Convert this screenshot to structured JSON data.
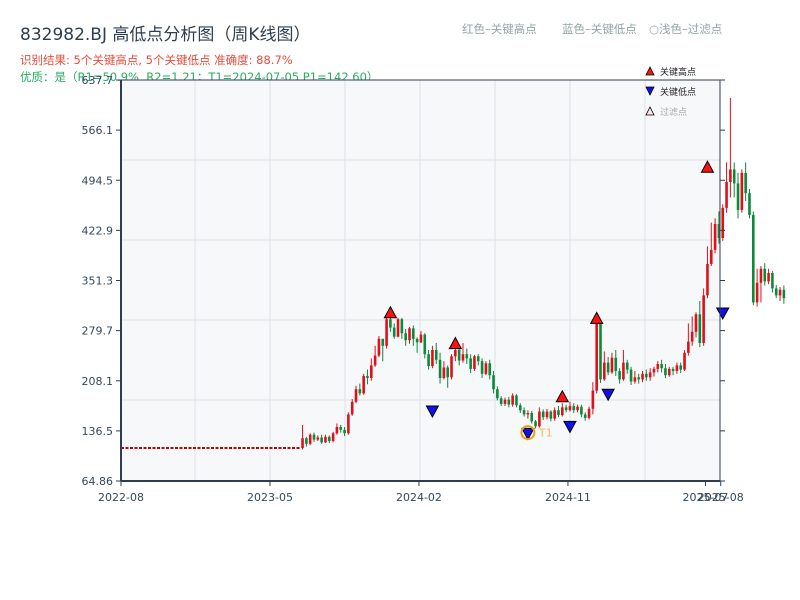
{
  "header": {
    "title": "832982.BJ 高低点分析图（周K线图）",
    "result_line": "识别结果: 5个关键高点, 5个关键低点   准确度: 88.7%",
    "quality_line": "优质：是（R1=50.9%, R2=1.21；T1=2024-07-05 P1=142.60）",
    "legend_red": "红色–关键高点",
    "legend_blue": "蓝色–关键低点",
    "legend_light": "○浅色–过滤点"
  },
  "colors": {
    "up": "#e0101a",
    "down": "#0a8a3a",
    "high_marker": "#ff1010",
    "low_marker": "#1010ee",
    "t1_circle": "#f39c12",
    "axis": "#2c3e50",
    "grid": "#dde1e6",
    "plot_bg": "#f7f8fa",
    "flat_line": "#c00000"
  },
  "chart_data": {
    "type": "candlestick",
    "title": "832982.BJ 高低点分析图（周K线图）",
    "xlabel": "",
    "ylabel": "",
    "ylim": [
      64.86,
      637.7
    ],
    "yticks": [
      "64.86",
      "136.5",
      "208.1",
      "279.7",
      "351.3",
      "422.9",
      "494.5",
      "566.1",
      "637.7"
    ],
    "xticks": [
      "2022-08",
      "2023-05",
      "2024-02",
      "2024-11",
      "2025-07",
      "2025-08"
    ],
    "xtick_weeks": [
      0,
      39,
      78,
      117,
      153,
      157
    ],
    "grid": true,
    "legend": [
      "关键高点",
      "关键低点",
      "过滤点"
    ],
    "legend_position": "upper right",
    "flat_segment": {
      "from_week": 0,
      "to_week": 47,
      "price": 112
    },
    "start_week": 47,
    "candles": [
      [
        112,
        126,
        145,
        110
      ],
      [
        126,
        118,
        128,
        114
      ],
      [
        118,
        131,
        133,
        116
      ],
      [
        131,
        124,
        134,
        121
      ],
      [
        124,
        127,
        130,
        122
      ],
      [
        127,
        120,
        131,
        118
      ],
      [
        120,
        128,
        131,
        119
      ],
      [
        128,
        122,
        130,
        119
      ],
      [
        122,
        133,
        135,
        120
      ],
      [
        133,
        142,
        147,
        131
      ],
      [
        142,
        138,
        145,
        134
      ],
      [
        138,
        133,
        142,
        129
      ],
      [
        133,
        160,
        163,
        131
      ],
      [
        160,
        178,
        182,
        158
      ],
      [
        178,
        196,
        201,
        176
      ],
      [
        196,
        190,
        204,
        187
      ],
      [
        190,
        215,
        218,
        188
      ],
      [
        215,
        212,
        224,
        203
      ],
      [
        212,
        230,
        240,
        208
      ],
      [
        230,
        244,
        258,
        228
      ],
      [
        244,
        268,
        272,
        242
      ],
      [
        268,
        258,
        268,
        236
      ],
      [
        258,
        296,
        300,
        254
      ],
      [
        296,
        284,
        300,
        278
      ],
      [
        284,
        271,
        290,
        268
      ],
      [
        271,
        296,
        298,
        270
      ],
      [
        296,
        276,
        298,
        268
      ],
      [
        276,
        266,
        282,
        258
      ],
      [
        266,
        283,
        285,
        261
      ],
      [
        283,
        268,
        287,
        258
      ],
      [
        268,
        263,
        270,
        248
      ],
      [
        263,
        274,
        279,
        262
      ],
      [
        274,
        246,
        276,
        240
      ],
      [
        246,
        229,
        252,
        224
      ],
      [
        229,
        252,
        258,
        226
      ],
      [
        252,
        238,
        262,
        232
      ],
      [
        238,
        212,
        248,
        204
      ],
      [
        212,
        227,
        236,
        210
      ],
      [
        227,
        213,
        230,
        198
      ],
      [
        213,
        243,
        246,
        210
      ],
      [
        243,
        252,
        256,
        236
      ],
      [
        252,
        237,
        256,
        230
      ],
      [
        237,
        246,
        262,
        234
      ],
      [
        246,
        240,
        254,
        232
      ],
      [
        240,
        225,
        246,
        219
      ],
      [
        225,
        243,
        245,
        222
      ],
      [
        243,
        236,
        246,
        230
      ],
      [
        236,
        218,
        240,
        212
      ],
      [
        218,
        233,
        236,
        216
      ],
      [
        233,
        216,
        238,
        210
      ],
      [
        216,
        196,
        222,
        190
      ],
      [
        196,
        183,
        200,
        180
      ],
      [
        183,
        175,
        186,
        172
      ],
      [
        175,
        181,
        184,
        172
      ],
      [
        181,
        174,
        185,
        170
      ],
      [
        174,
        187,
        190,
        171
      ],
      [
        187,
        173,
        189,
        170
      ],
      [
        173,
        166,
        176,
        162
      ],
      [
        166,
        160,
        170,
        157
      ],
      [
        160,
        162,
        166,
        154
      ],
      [
        162,
        150,
        165,
        147
      ],
      [
        150,
        143,
        152,
        140
      ],
      [
        143,
        164,
        170,
        141
      ],
      [
        164,
        156,
        167,
        152
      ],
      [
        156,
        164,
        168,
        153
      ],
      [
        164,
        154,
        166,
        150
      ],
      [
        154,
        166,
        170,
        151
      ],
      [
        166,
        159,
        172,
        156
      ],
      [
        159,
        170,
        176,
        157
      ],
      [
        170,
        166,
        174,
        163
      ],
      [
        166,
        172,
        178,
        164
      ],
      [
        172,
        166,
        176,
        162
      ],
      [
        166,
        171,
        174,
        163
      ],
      [
        171,
        160,
        174,
        156
      ],
      [
        160,
        155,
        163,
        151
      ],
      [
        155,
        168,
        171,
        153
      ],
      [
        168,
        194,
        206,
        160
      ],
      [
        194,
        292,
        296,
        190
      ],
      [
        292,
        210,
        292,
        205
      ],
      [
        210,
        234,
        250,
        208
      ],
      [
        234,
        220,
        242,
        216
      ],
      [
        220,
        241,
        248,
        218
      ],
      [
        241,
        222,
        252,
        215
      ],
      [
        222,
        210,
        226,
        204
      ],
      [
        210,
        234,
        252,
        208
      ],
      [
        234,
        224,
        238,
        218
      ],
      [
        224,
        207,
        228,
        202
      ],
      [
        207,
        213,
        222,
        204
      ],
      [
        213,
        210,
        218,
        204
      ],
      [
        210,
        218,
        222,
        206
      ],
      [
        218,
        213,
        224,
        208
      ],
      [
        213,
        220,
        226,
        208
      ],
      [
        220,
        225,
        228,
        214
      ],
      [
        225,
        232,
        236,
        220
      ],
      [
        232,
        226,
        238,
        220
      ],
      [
        226,
        216,
        232,
        212
      ],
      [
        216,
        225,
        228,
        214
      ],
      [
        225,
        222,
        228,
        216
      ],
      [
        222,
        230,
        234,
        218
      ],
      [
        230,
        224,
        234,
        219
      ],
      [
        224,
        248,
        252,
        222
      ],
      [
        248,
        264,
        290,
        244
      ],
      [
        264,
        278,
        300,
        258
      ],
      [
        278,
        303,
        306,
        270
      ],
      [
        303,
        262,
        322,
        256
      ],
      [
        262,
        330,
        340,
        258
      ],
      [
        330,
        375,
        400,
        326
      ],
      [
        375,
        395,
        434,
        372
      ],
      [
        395,
        432,
        440,
        390
      ],
      [
        432,
        412,
        450,
        404
      ],
      [
        412,
        455,
        460,
        408
      ],
      [
        455,
        492,
        520,
        448
      ],
      [
        492,
        510,
        612,
        470
      ],
      [
        510,
        490,
        520,
        470
      ],
      [
        490,
        452,
        505,
        440
      ],
      [
        452,
        505,
        510,
        448
      ],
      [
        505,
        476,
        520,
        465
      ],
      [
        476,
        445,
        482,
        440
      ],
      [
        445,
        320,
        450,
        316
      ],
      [
        320,
        348,
        368,
        314
      ],
      [
        348,
        368,
        372,
        320
      ],
      [
        368,
        350,
        376,
        344
      ],
      [
        350,
        362,
        368,
        346
      ],
      [
        362,
        340,
        365,
        334
      ],
      [
        340,
        330,
        345,
        326
      ],
      [
        330,
        338,
        342,
        322
      ],
      [
        338,
        326,
        344,
        318
      ]
    ],
    "key_highs": [
      {
        "week": 70,
        "price": 298
      },
      {
        "week": 87,
        "price": 254
      },
      {
        "week": 115,
        "price": 178
      },
      {
        "week": 124,
        "price": 290
      },
      {
        "week": 153,
        "price": 506
      }
    ],
    "key_lows": [
      {
        "week": 81,
        "price": 172
      },
      {
        "week": 106,
        "price": 140
      },
      {
        "week": 117,
        "price": 150
      },
      {
        "week": 127,
        "price": 196
      },
      {
        "week": 157,
        "price": 312
      }
    ],
    "t1_marker": {
      "label": "T1",
      "week": 106,
      "price": 142.6,
      "date": "2024-07-05"
    }
  }
}
